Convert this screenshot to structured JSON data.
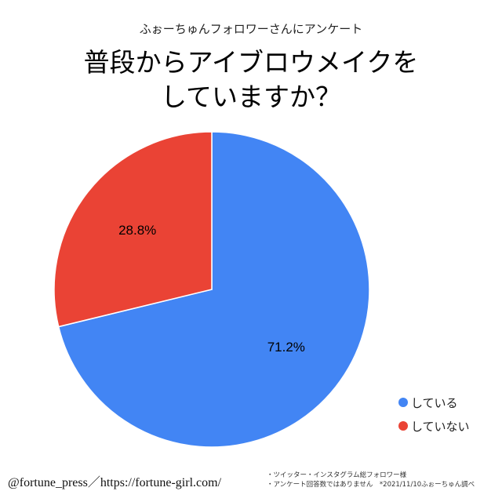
{
  "header": {
    "subtitle": "ふぉーちゅんフォロワーさんにアンケート",
    "title_line1": "普段からアイブロウメイクを",
    "title_line2": "していますか？"
  },
  "chart_data": {
    "type": "pie",
    "title": "普段からアイブロウメイクをしていますか？",
    "subtitle": "ふぉーちゅんフォロワーさんにアンケート",
    "slices": [
      {
        "label": "している",
        "value": 71.2,
        "display": "71.2%",
        "color": "#4285f4"
      },
      {
        "label": "していない",
        "value": 28.8,
        "display": "28.8%",
        "color": "#ea4335"
      }
    ],
    "legend_position": "bottom-right"
  },
  "legend": {
    "items": [
      {
        "label": "している",
        "color": "#4285f4"
      },
      {
        "label": "していない",
        "color": "#ea4335"
      }
    ]
  },
  "footer": {
    "credit": "@fortune_press／https://fortune-girl.com/",
    "note1": "・ツイッター・インスタグラム総フォロワー様",
    "note2": "・アンケート回答数ではありません　*2021/11/10ふぉーちゅん調べ"
  }
}
